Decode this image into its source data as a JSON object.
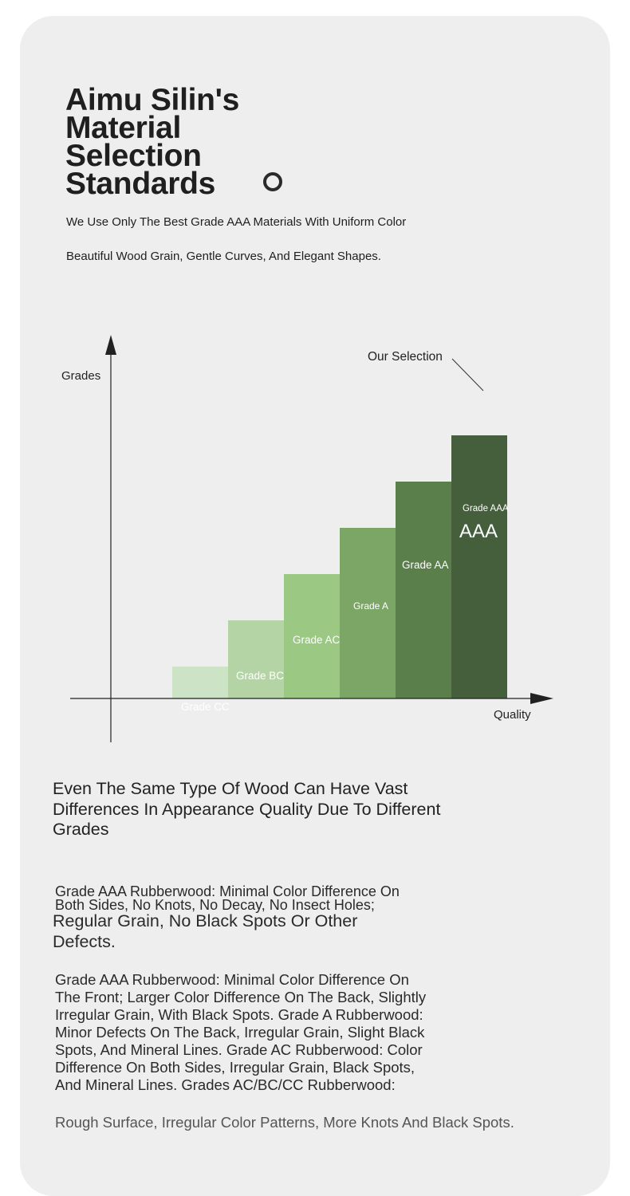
{
  "header": {
    "title": "Aimu Silin's Material Selection Standards",
    "subtitle_line1": "We Use Only The Best Grade AAA Materials With Uniform Color",
    "subtitle_line2": "Beautiful Wood Grain, Gentle Curves, And Elegant Shapes."
  },
  "chart_data": {
    "type": "bar",
    "title": "",
    "ylabel": "Grades",
    "xlabel": "Quality",
    "callout": "Our Selection",
    "categories": [
      "Grade CC",
      "Grade BC",
      "Grade AC",
      "Grade A",
      "Grade AA",
      "Grade AAA"
    ],
    "values": [
      1,
      2,
      3,
      4,
      5,
      6
    ],
    "highlight_label": "AAA",
    "highlight_index": 5,
    "colors": [
      "#cde3c6",
      "#b5d4a5",
      "#9bc882",
      "#7ba665",
      "#5a7f4b",
      "#455f3d"
    ],
    "grid": false
  },
  "body": {
    "heading": "Even The Same Type Of Wood Can Have Vast Differences In Appearance Quality Due To Different Grades",
    "para1_a": "Grade AAA Rubberwood: Minimal Color Difference On Both Sides, No Knots, No Decay, No Insect Holes;",
    "para1_b": "Regular Grain, No Black Spots Or Other Defects.",
    "para2": "Grade AAA Rubberwood: Minimal Color Difference On The Front; Larger Color Difference On The Back, Slightly Irregular Grain, With Black Spots. Grade A Rubberwood: Minor Defects On The Back, Irregular Grain, Slight Black Spots, And Mineral Lines. Grade AC Rubberwood: Color Difference On Both Sides, Irregular Grain, Black Spots, And Mineral Lines. Grades AC/BC/CC Rubberwood:",
    "para3": "Rough Surface, Irregular Color Patterns, More Knots And Black Spots."
  }
}
